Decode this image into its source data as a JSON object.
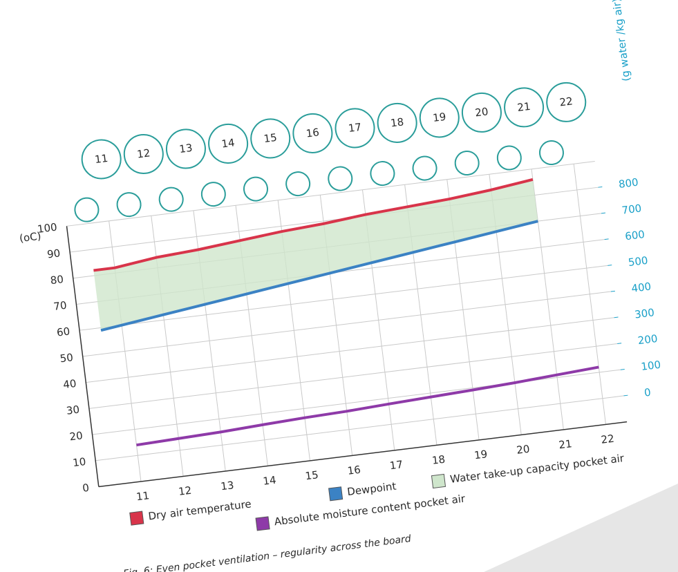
{
  "chart_data": {
    "type": "line",
    "caption": "Fig. 6: Even pocket ventilation – regularity across the board",
    "y_label": "(oC)",
    "y2_label": "(g water /kg air)",
    "cylinders": [
      "11",
      "12",
      "13",
      "14",
      "15",
      "16",
      "17",
      "18",
      "19",
      "20",
      "21",
      "22"
    ],
    "x": [
      10.5,
      11,
      12,
      13,
      14,
      15,
      16,
      17,
      18,
      19,
      20,
      21,
      22
    ],
    "xlim": [
      10,
      22.5
    ],
    "xticks": [
      11,
      12,
      13,
      14,
      15,
      16,
      17,
      18,
      19,
      20,
      21,
      22
    ],
    "ylim": [
      0,
      100
    ],
    "yticks": [
      0,
      10,
      20,
      30,
      40,
      50,
      60,
      70,
      80,
      90,
      100
    ],
    "y2lim": [
      -100,
      900
    ],
    "y2ticks": [
      0,
      100,
      200,
      300,
      400,
      500,
      600,
      700,
      800
    ],
    "grid": true,
    "series": [
      {
        "name": "Dry air temperature",
        "color": "#d8344a",
        "values": [
          82,
          82,
          84,
          85,
          86.5,
          88,
          89,
          90.5,
          91.5,
          92.5,
          94,
          96,
          null
        ]
      },
      {
        "name": "Dewpoint",
        "color": "#3b82c4",
        "values": [
          59,
          60,
          62,
          64,
          66,
          68,
          70,
          72,
          74,
          76,
          78,
          80,
          null
        ]
      },
      {
        "name": "Absolute moisture content pocket air",
        "color": "#8e3aa8",
        "axis": "y2",
        "values": [
          null,
          40,
          45,
          50,
          58,
          65,
          70,
          78,
          85,
          92,
          100,
          110,
          120
        ]
      }
    ],
    "band": {
      "name": "Water take-up capacity pocket air",
      "color": "#cfe6cc"
    }
  }
}
